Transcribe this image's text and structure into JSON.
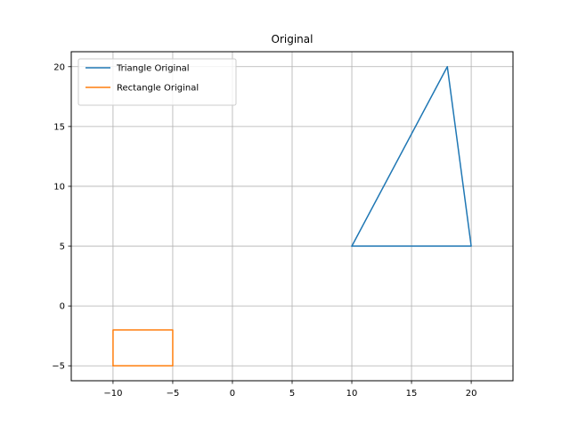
{
  "chart_data": {
    "type": "line",
    "title": "Original",
    "xlabel": "",
    "ylabel": "",
    "xlim": [
      -13.5,
      23.5
    ],
    "ylim": [
      -6.25,
      21.25
    ],
    "xticks": [
      -10,
      -5,
      0,
      5,
      10,
      15,
      20
    ],
    "yticks": [
      -5,
      0,
      5,
      10,
      15,
      20
    ],
    "grid": true,
    "legend_position": "top-left",
    "series": [
      {
        "name": "Triangle Original",
        "color": "#1f77b4",
        "x": [
          10,
          20,
          18,
          10
        ],
        "y": [
          5,
          5,
          20,
          5
        ]
      },
      {
        "name": "Rectangle Original",
        "color": "#ff7f0e",
        "x": [
          -10,
          -5,
          -5,
          -10,
          -10
        ],
        "y": [
          -5,
          -5,
          -2,
          -2,
          -5
        ]
      }
    ]
  }
}
